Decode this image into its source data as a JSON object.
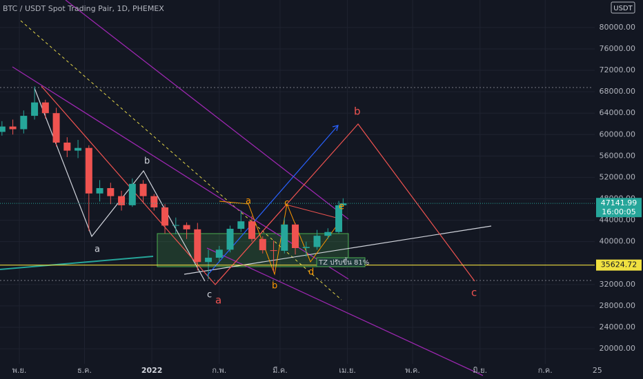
{
  "chart_data": {
    "type": "candlestick",
    "title": "BTC / USDT Spot Trading Pair, 1D, PHEMEX",
    "currency": "USDT",
    "x": [
      -8,
      -3,
      2,
      7,
      12,
      17,
      22,
      27,
      32,
      37,
      42,
      47,
      52,
      57,
      62,
      67,
      72,
      77,
      82,
      87,
      92,
      97,
      102,
      107,
      112,
      117,
      122,
      127,
      132,
      137,
      142,
      147,
      149
    ],
    "open": [
      60500,
      61500,
      61000,
      63500,
      66000,
      64000,
      58500,
      57000,
      57500,
      49000,
      50000,
      48500,
      46800,
      50800,
      48500,
      46400,
      43000,
      43100,
      42300,
      36200,
      37000,
      38500,
      42400,
      43800,
      40500,
      38400,
      38300,
      43200,
      38800,
      39000,
      41100,
      41800,
      46800
    ],
    "high": [
      62500,
      62800,
      64500,
      69000,
      66500,
      65000,
      59500,
      59000,
      58000,
      51500,
      51000,
      49500,
      51800,
      51500,
      48900,
      47000,
      44500,
      43600,
      43500,
      38500,
      39200,
      43000,
      45800,
      44800,
      41000,
      40200,
      44500,
      43500,
      40000,
      42200,
      42500,
      47600,
      48100
    ],
    "low": [
      59800,
      60000,
      60200,
      62800,
      63000,
      57800,
      55800,
      55600,
      42000,
      47500,
      47000,
      45800,
      46500,
      47200,
      45800,
      41500,
      41400,
      40500,
      34600,
      33000,
      36300,
      38000,
      41800,
      40000,
      37800,
      34300,
      37800,
      37600,
      37200,
      38500,
      40500,
      41500,
      46500
    ],
    "close": [
      61500,
      61000,
      63500,
      66000,
      64000,
      58500,
      57000,
      57500,
      49000,
      50000,
      48500,
      46800,
      50800,
      48500,
      46400,
      43000,
      43100,
      42300,
      36200,
      37000,
      38500,
      42400,
      43800,
      40500,
      38400,
      38300,
      43200,
      38800,
      39000,
      41100,
      41800,
      46800,
      47141.99
    ],
    "up_color": "#26a69a",
    "down_color": "#ef5350",
    "last_price": 47141.99,
    "countdown": "16:00:05",
    "level": 35624.72,
    "xlim": [
      -8.9,
      270.5
    ],
    "ylim": [
      17180,
      85130
    ],
    "xticks": [
      {
        "value": 0,
        "label": "พ.ย."
      },
      {
        "value": 30,
        "label": "ธ.ค."
      },
      {
        "value": 61,
        "label": "2022"
      },
      {
        "value": 92,
        "label": "ก.พ."
      },
      {
        "value": 120,
        "label": "มี.ค."
      },
      {
        "value": 151,
        "label": "เม.ย."
      },
      {
        "value": 181,
        "label": "พ.ค."
      },
      {
        "value": 212,
        "label": "มิ.ย."
      },
      {
        "value": 242,
        "label": "ก.ค."
      },
      {
        "value": 266,
        "label": "25"
      }
    ],
    "yticks": [
      {
        "value": 20000,
        "label": "20000.00"
      },
      {
        "value": 24000,
        "label": "24000.00"
      },
      {
        "value": 28000,
        "label": "28000.00"
      },
      {
        "value": 32000,
        "label": "32000.00"
      },
      {
        "value": 36000,
        "label": "36000.00"
      },
      {
        "value": 40000,
        "label": "40000.00"
      },
      {
        "value": 44000,
        "label": "44000.00"
      },
      {
        "value": 48000,
        "label": "48000.00"
      },
      {
        "value": 52000,
        "label": "52000.00"
      },
      {
        "value": 56000,
        "label": "56000.00"
      },
      {
        "value": 60000,
        "label": "60000.00"
      },
      {
        "value": 64000,
        "label": "64000.00"
      },
      {
        "value": 68000,
        "label": "68000.00"
      },
      {
        "value": 72000,
        "label": "72000.00"
      },
      {
        "value": 76000,
        "label": "76000.00"
      },
      {
        "value": 80000,
        "label": "80000.00"
      }
    ],
    "grid": true,
    "annotations": {
      "white": [
        "a",
        "b",
        "c"
      ],
      "red": [
        "a",
        "b",
        "c"
      ],
      "orange": [
        "a",
        "c",
        "b",
        "d",
        "e"
      ],
      "zone": "TZ ปรับขึ้น 81%"
    }
  }
}
